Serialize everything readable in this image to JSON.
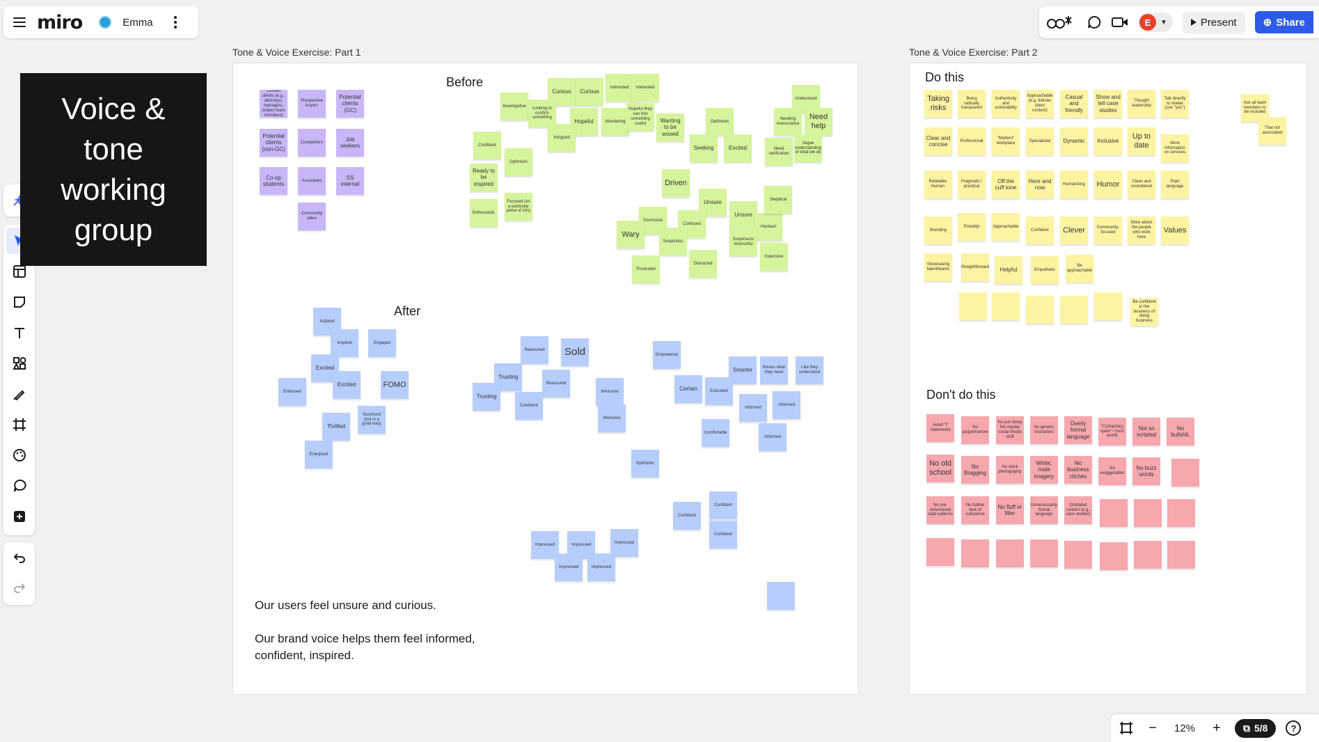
{
  "app": {
    "logo": "miro",
    "board_name": "Emma"
  },
  "header_right": {
    "present_label": "Present",
    "share_label": "Share",
    "avatar_initial": "E"
  },
  "title_card": {
    "text": "Voice & tone working group"
  },
  "frames": {
    "part1_label": "Tone & Voice Exercise: Part 1",
    "part2_label": "Tone & Voice Exercise: Part 2",
    "before_title": "Before",
    "after_title": "After",
    "do_title": "Do this",
    "dont_title": "Don't do this"
  },
  "caption": {
    "line1": "Our users feel unsure and curious.",
    "line2": "Our brand voice helps them feel informed,",
    "line3": "confident, inspired."
  },
  "audience_notes": [
    "Current clients (e.g., attorneys, managers, project team members)",
    "Prospective buyers",
    "Potential clients (GC)",
    "Potential clients (non-GC)",
    "Competitors",
    "Job seekers",
    "Co-op students",
    "Associates",
    "SS internal",
    "Community allies"
  ],
  "before_notes": [
    "Curious",
    "Curious",
    "Interested",
    "Interested",
    "Investigative",
    "Looking to confirm something",
    "Hopeful",
    "Wondering",
    "Hopeful they can find something useful",
    "Wanting to be wooed",
    "Optimistic",
    "Intrigued",
    "Confident",
    "Optimistic",
    "Seeking",
    "Excited",
    "Ready to be inspired",
    "Enthusiastic",
    "Focused (on a particular piece of info)",
    "Driven",
    "Unsure",
    "Dismissive",
    "Confused",
    "Wary",
    "Unsure",
    "Hesitant",
    "Skeptical",
    "Suspicious",
    "Suspicious/ mistrustful",
    "Indecisive",
    "Frustrated",
    "Distracted",
    "Understood",
    "Needing reassurance",
    "Need help",
    "Need verification",
    "Vague understanding of what we do"
  ],
  "after_notes": [
    "Inspired",
    "Inspired",
    "Engaged",
    "Excited",
    "Excited",
    "Enthused",
    "FOMO",
    "Thrilled",
    "Surprised (but in a good way)",
    "Energized",
    "Reassured",
    "Sold",
    "Trusting",
    "Trusting",
    "Reassured",
    "Confident",
    "Welcome",
    "Welcome",
    "Empowered",
    "Smarter",
    "Knows what they need",
    "Like they understand",
    "Certain",
    "Educated",
    "Informed",
    "Informed",
    "Comfortable",
    "Informed",
    "Optimistic",
    "Confident",
    "Confident",
    "Confident",
    "Impressed",
    "Impressed",
    "Impressed",
    "Impressed",
    "Impressed"
  ],
  "do_notes": [
    "Taking risks",
    "Being radically transparent",
    "Authenticity and vulnerability",
    "Approachable (e.g. folksier client content)",
    "Casual and friendly",
    "Show and tell case studies",
    "Thought leadership",
    "Talk directly to reader (use \"you\")",
    "Clear and concise",
    "Professional",
    "\"Modern\" workplace",
    "Specialized",
    "Dynamic",
    "Inclusive",
    "Up to date",
    "More information on services",
    "Relatable. Human.",
    "Pragmatic / practical",
    "Off the cuff tone",
    "Here and now",
    "Humanizing",
    "Humor",
    "Clean and uncluttered",
    "Plain language",
    "Branding",
    "Friendly!",
    "Approachable",
    "Confident",
    "Clever",
    "Community-focused",
    "More about the people who work here",
    "Values",
    "Showcasing talent/teams",
    "Straightforward",
    "Helpful",
    "Empathetic",
    "Be approachable",
    "Be confident in the business of doing business",
    "Ask all team members to be included",
    "That not associated"
  ],
  "dont_notes": [
    "Avoid \"I\" statements",
    "No jargon/narrow",
    "No just doing the regular social media stuff",
    "No generic characters",
    "Overly formal language",
    "\"Conspiracy spam\" / buzz words",
    "Not so scripted",
    "No bullshit.",
    "No old school",
    "No Bragging",
    "No stock photography",
    "White, male imagery",
    "No business clichés",
    "No exaggeration",
    "No buzz words",
    "No pre-determined style patterns",
    "No hollow lack of substance",
    "No fluff or filler",
    "Unnecessarily formal language",
    "Outdated content (e.g., case studies)"
  ],
  "zoom": {
    "level": "12%",
    "page": "5/8"
  },
  "colors": {
    "accent": "#2d5ae8",
    "purple_note": "#c8b6f7",
    "green_note": "#d5f49b",
    "blue_note": "#b7cefc",
    "yellow_note": "#fdf4a2",
    "pink_note": "#f6a8ae"
  }
}
